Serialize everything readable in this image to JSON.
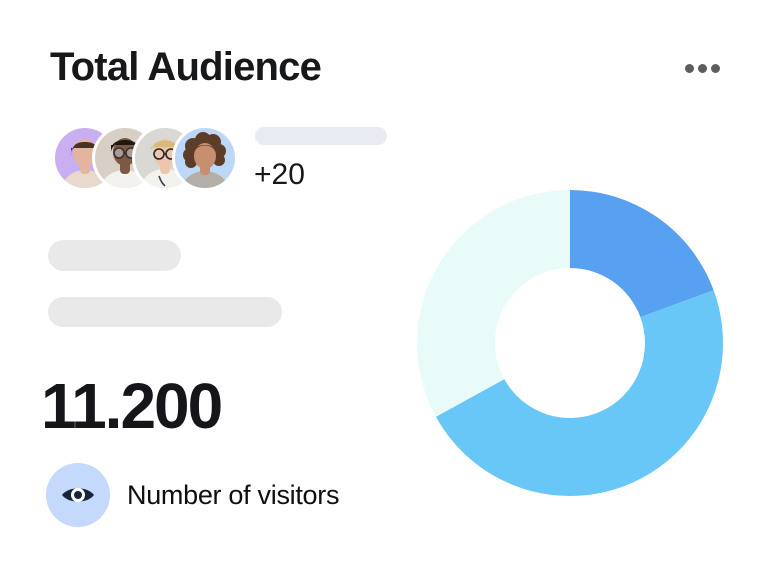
{
  "card": {
    "title": "Total Audience",
    "menu": {
      "icon": "ellipsis-horizontal-icon"
    },
    "avatars": [
      {
        "name": "woman-dark-hair",
        "bg": "#c9aff1",
        "hair": "#4a3226",
        "skin": "#e3b49e",
        "shirt": "#e9d8cc"
      },
      {
        "name": "man-glasses",
        "bg": "#d8cfc6",
        "hair": "#1d1712",
        "skin": "#7d5844",
        "shirt": "#f4f2ef"
      },
      {
        "name": "doctor-blonde",
        "bg": "#d9d8d4",
        "hair": "#d9b97a",
        "skin": "#ecc6ad",
        "shirt": "#f3f2ef"
      },
      {
        "name": "woman-curly",
        "bg": "#bcd7f8",
        "hair": "#5d3c28",
        "skin": "#c78e6f",
        "shirt": "#b4aea8"
      }
    ],
    "overflow_count": "+20",
    "stat": {
      "value": "11.200",
      "label": "Number of visitors",
      "icon": "eye-icon",
      "badge_bg": "#c5d9fc",
      "icon_color": "#17253c"
    },
    "skeleton_color": "#e9e9e9",
    "skeleton_color_top": "#e8ecf2"
  },
  "chart_data": {
    "type": "pie",
    "subtype": "donut",
    "title": "",
    "legend": "none",
    "start_angle_deg": 0,
    "direction": "clockwise",
    "inner_radius_ratio": 0.49,
    "segments": [
      {
        "name": "medium-blue",
        "percent": 19.4,
        "color": "#58a0f0"
      },
      {
        "name": "sky-blue",
        "percent": 47.6,
        "color": "#68c7f6"
      },
      {
        "name": "mint",
        "percent": 33.0,
        "color": "#e9fbf8"
      }
    ]
  }
}
